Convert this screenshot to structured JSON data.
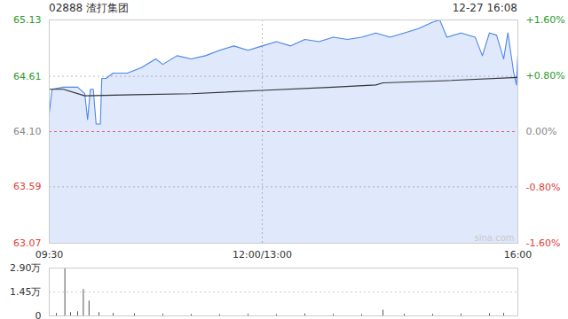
{
  "chart_data": {
    "type": "line",
    "title": "02888 渣打集团",
    "timestamp": "12-27 16:08",
    "watermark": "sina.com",
    "xlim": [
      0,
      330
    ],
    "xticks": [
      {
        "value": 0,
        "label": "09:30"
      },
      {
        "value": 150,
        "label": "12:00/13:00"
      },
      {
        "value": 330,
        "label": "16:00"
      }
    ],
    "ylim": [
      63.07,
      65.13
    ],
    "yticks": [
      63.07,
      63.59,
      {
        "value": 64.1,
        "label": "64.10"
      },
      64.61,
      65.13
    ],
    "y2lim": [
      -1.6,
      1.6
    ],
    "y2ticks": [
      {
        "value": -1.6,
        "label": "-1.60%"
      },
      {
        "value": -0.8,
        "label": "-0.80%"
      },
      {
        "value": 0,
        "label": "0.00%"
      },
      {
        "value": 0.8,
        "label": "+0.80%"
      },
      {
        "value": 1.6,
        "label": "+1.60%"
      }
    ],
    "reference": 64.1,
    "grid": true,
    "series": [
      {
        "type": "area",
        "color": "#4f86e8",
        "x": [
          0,
          2,
          10,
          20,
          25,
          27,
          29,
          31,
          33,
          36,
          37,
          40,
          45,
          55,
          65,
          75,
          80,
          90,
          100,
          110,
          120,
          130,
          140,
          150,
          160,
          170,
          180,
          190,
          200,
          210,
          220,
          230,
          240,
          250,
          260,
          270,
          275,
          280,
          290,
          300,
          305,
          310,
          315,
          320,
          323,
          327,
          329,
          330
        ],
        "values": [
          64.27,
          64.49,
          64.51,
          64.51,
          64.45,
          64.21,
          64.49,
          64.49,
          64.17,
          64.17,
          64.59,
          64.59,
          64.64,
          64.64,
          64.69,
          64.77,
          64.72,
          64.8,
          64.77,
          64.8,
          64.85,
          64.89,
          64.85,
          64.89,
          64.93,
          64.89,
          64.95,
          64.93,
          64.97,
          64.95,
          64.97,
          65.01,
          64.97,
          65.01,
          65.05,
          65.11,
          65.13,
          64.97,
          65.01,
          64.97,
          64.8,
          65.01,
          64.99,
          64.77,
          65.01,
          64.65,
          64.53,
          64.81
        ]
      },
      {
        "type": "line",
        "color": "#333333",
        "x": [
          0,
          10,
          25,
          60,
          100,
          150,
          200,
          230,
          235,
          280,
          330
        ],
        "values": [
          64.49,
          64.49,
          64.43,
          64.44,
          64.45,
          64.48,
          64.51,
          64.53,
          64.55,
          64.57,
          64.6
        ]
      }
    ],
    "volume": {
      "color": "#555555",
      "ylim": [
        0,
        29000
      ],
      "yticks": [
        0,
        {
          "value": 14500,
          "label": "1.45万"
        },
        {
          "value": 29000,
          "label": "2.90万"
        }
      ],
      "x": [
        0,
        5,
        11,
        15,
        20,
        24,
        28,
        35,
        45,
        60,
        80,
        100,
        120,
        140,
        160,
        180,
        200,
        220,
        235,
        250,
        270,
        290,
        310,
        320,
        330
      ],
      "values": [
        3000,
        1500,
        29000,
        2000,
        2500,
        16000,
        9000,
        2000,
        1500,
        1200,
        1000,
        900,
        800,
        1000,
        800,
        1200,
        900,
        800,
        3500,
        1000,
        900,
        1100,
        1300,
        1500,
        5000
      ]
    }
  }
}
